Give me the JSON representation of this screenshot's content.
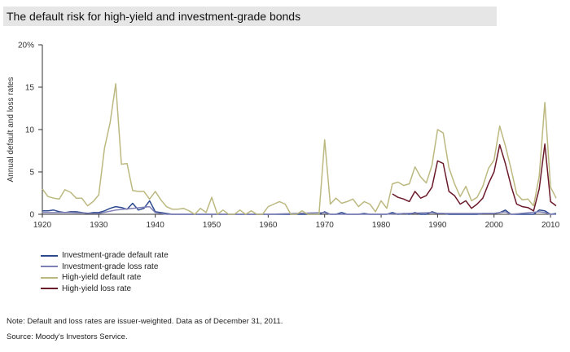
{
  "title": "The default risk for high-yield and investment-grade bonds",
  "note": "Note: Default and loss rates are issuer-weighted. Data as of December 31, 2011.",
  "source": "Source: Moody's Investors Service.",
  "chart_data": {
    "type": "line",
    "ylabel": "Annual default and loss rates",
    "xlim": [
      1920,
      2011
    ],
    "ylim": [
      0,
      20
    ],
    "yticks": [
      0,
      5,
      10,
      15,
      20
    ],
    "ytick_labels": [
      "0",
      "5",
      "10",
      "15",
      "20%"
    ],
    "xticks": [
      1920,
      1930,
      1940,
      1950,
      1960,
      1970,
      1980,
      1990,
      2000,
      2010
    ],
    "grid": false,
    "legend_position": "bottom-left",
    "series": [
      {
        "name": "Investment-grade default rate",
        "color": "#2e4a8f",
        "points": [
          [
            1920,
            0.4
          ],
          [
            1921,
            0.4
          ],
          [
            1922,
            0.5
          ],
          [
            1923,
            0.3
          ],
          [
            1924,
            0.2
          ],
          [
            1925,
            0.3
          ],
          [
            1926,
            0.3
          ],
          [
            1927,
            0.2
          ],
          [
            1928,
            0.1
          ],
          [
            1929,
            0.2
          ],
          [
            1930,
            0.2
          ],
          [
            1931,
            0.4
          ],
          [
            1932,
            0.7
          ],
          [
            1933,
            0.9
          ],
          [
            1934,
            0.8
          ],
          [
            1935,
            0.6
          ],
          [
            1936,
            1.3
          ],
          [
            1937,
            0.5
          ],
          [
            1938,
            0.7
          ],
          [
            1939,
            1.6
          ],
          [
            1940,
            0.3
          ],
          [
            1941,
            0.2
          ],
          [
            1942,
            0.1
          ],
          [
            1943,
            0.0
          ],
          [
            1944,
            0.0
          ],
          [
            1945,
            0.0
          ],
          [
            1950,
            0.0
          ],
          [
            1960,
            0.0
          ],
          [
            1969,
            0.0
          ],
          [
            1970,
            0.3
          ],
          [
            1971,
            0.0
          ],
          [
            1972,
            0.0
          ],
          [
            1973,
            0.2
          ],
          [
            1974,
            0.0
          ],
          [
            1975,
            0.0
          ],
          [
            1976,
            0.0
          ],
          [
            1977,
            0.1
          ],
          [
            1978,
            0.0
          ],
          [
            1979,
            0.0
          ],
          [
            1980,
            0.0
          ],
          [
            1981,
            0.0
          ],
          [
            1982,
            0.2
          ],
          [
            1983,
            0.0
          ],
          [
            1984,
            0.1
          ],
          [
            1985,
            0.0
          ],
          [
            1986,
            0.2
          ],
          [
            1987,
            0.0
          ],
          [
            1988,
            0.0
          ],
          [
            1989,
            0.3
          ],
          [
            1990,
            0.1
          ],
          [
            1991,
            0.1
          ],
          [
            1992,
            0.0
          ],
          [
            1993,
            0.0
          ],
          [
            1994,
            0.0
          ],
          [
            1995,
            0.0
          ],
          [
            1996,
            0.0
          ],
          [
            1997,
            0.0
          ],
          [
            1998,
            0.1
          ],
          [
            1999,
            0.1
          ],
          [
            2000,
            0.1
          ],
          [
            2001,
            0.2
          ],
          [
            2002,
            0.5
          ],
          [
            2003,
            0.0
          ],
          [
            2004,
            0.0
          ],
          [
            2005,
            0.0
          ],
          [
            2006,
            0.0
          ],
          [
            2007,
            0.0
          ],
          [
            2008,
            0.5
          ],
          [
            2009,
            0.4
          ],
          [
            2010,
            0.0
          ],
          [
            2011,
            0.1
          ]
        ]
      },
      {
        "name": "Investment-grade loss rate",
        "color": "#7e7fb5",
        "points": [
          [
            1920,
            0.2
          ],
          [
            1925,
            0.2
          ],
          [
            1930,
            0.1
          ],
          [
            1933,
            0.5
          ],
          [
            1936,
            0.7
          ],
          [
            1939,
            0.9
          ],
          [
            1940,
            0.2
          ],
          [
            1942,
            0.0
          ],
          [
            1950,
            0.0
          ],
          [
            1960,
            0.0
          ],
          [
            1970,
            0.2
          ],
          [
            1971,
            0.0
          ],
          [
            1980,
            0.0
          ],
          [
            1989,
            0.2
          ],
          [
            1990,
            0.1
          ],
          [
            2000,
            0.1
          ],
          [
            2002,
            0.3
          ],
          [
            2003,
            0.0
          ],
          [
            2008,
            0.3
          ],
          [
            2009,
            0.2
          ],
          [
            2010,
            0.0
          ],
          [
            2011,
            0.0
          ]
        ]
      },
      {
        "name": "High-yield default rate",
        "color": "#bcb980",
        "points": [
          [
            1920,
            3.0
          ],
          [
            1921,
            2.1
          ],
          [
            1922,
            1.9
          ],
          [
            1923,
            1.8
          ],
          [
            1924,
            2.9
          ],
          [
            1925,
            2.6
          ],
          [
            1926,
            1.9
          ],
          [
            1927,
            1.9
          ],
          [
            1928,
            1.0
          ],
          [
            1929,
            1.5
          ],
          [
            1930,
            2.3
          ],
          [
            1931,
            7.8
          ],
          [
            1932,
            10.8
          ],
          [
            1933,
            15.4
          ],
          [
            1934,
            5.9
          ],
          [
            1935,
            6.0
          ],
          [
            1936,
            2.8
          ],
          [
            1937,
            2.7
          ],
          [
            1938,
            2.7
          ],
          [
            1939,
            1.8
          ],
          [
            1940,
            2.7
          ],
          [
            1941,
            1.7
          ],
          [
            1942,
            0.9
          ],
          [
            1943,
            0.6
          ],
          [
            1944,
            0.6
          ],
          [
            1945,
            0.7
          ],
          [
            1946,
            0.4
          ],
          [
            1947,
            0.0
          ],
          [
            1948,
            0.7
          ],
          [
            1949,
            0.2
          ],
          [
            1950,
            2.0
          ],
          [
            1951,
            0.0
          ],
          [
            1952,
            0.5
          ],
          [
            1953,
            0.0
          ],
          [
            1954,
            0.0
          ],
          [
            1955,
            0.5
          ],
          [
            1956,
            0.0
          ],
          [
            1957,
            0.4
          ],
          [
            1958,
            0.0
          ],
          [
            1959,
            0.0
          ],
          [
            1960,
            0.9
          ],
          [
            1961,
            1.2
          ],
          [
            1962,
            1.5
          ],
          [
            1963,
            1.2
          ],
          [
            1964,
            0.0
          ],
          [
            1965,
            0.0
          ],
          [
            1966,
            0.4
          ],
          [
            1967,
            0.0
          ],
          [
            1968,
            0.0
          ],
          [
            1969,
            0.0
          ],
          [
            1970,
            8.8
          ],
          [
            1971,
            1.2
          ],
          [
            1972,
            1.9
          ],
          [
            1973,
            1.3
          ],
          [
            1974,
            1.5
          ],
          [
            1975,
            1.8
          ],
          [
            1976,
            0.9
          ],
          [
            1977,
            1.5
          ],
          [
            1978,
            1.2
          ],
          [
            1979,
            0.3
          ],
          [
            1980,
            1.6
          ],
          [
            1981,
            0.7
          ],
          [
            1982,
            3.6
          ],
          [
            1983,
            3.8
          ],
          [
            1984,
            3.4
          ],
          [
            1985,
            3.6
          ],
          [
            1986,
            5.6
          ],
          [
            1987,
            4.4
          ],
          [
            1988,
            3.7
          ],
          [
            1989,
            5.8
          ],
          [
            1990,
            10.0
          ],
          [
            1991,
            9.6
          ],
          [
            1992,
            5.5
          ],
          [
            1993,
            3.6
          ],
          [
            1994,
            2.1
          ],
          [
            1995,
            3.3
          ],
          [
            1996,
            1.6
          ],
          [
            1997,
            2.0
          ],
          [
            1998,
            3.3
          ],
          [
            1999,
            5.4
          ],
          [
            2000,
            6.4
          ],
          [
            2001,
            10.4
          ],
          [
            2002,
            8.1
          ],
          [
            2003,
            5.4
          ],
          [
            2004,
            2.4
          ],
          [
            2005,
            1.7
          ],
          [
            2006,
            1.8
          ],
          [
            2007,
            1.0
          ],
          [
            2008,
            4.5
          ],
          [
            2009,
            13.2
          ],
          [
            2010,
            3.2
          ],
          [
            2011,
            1.9
          ]
        ]
      },
      {
        "name": "High-yield loss rate",
        "color": "#6b1a2a",
        "points": [
          [
            1982,
            2.4
          ],
          [
            1983,
            2.0
          ],
          [
            1984,
            1.8
          ],
          [
            1985,
            1.5
          ],
          [
            1986,
            2.7
          ],
          [
            1987,
            1.9
          ],
          [
            1988,
            2.2
          ],
          [
            1989,
            3.2
          ],
          [
            1990,
            6.3
          ],
          [
            1991,
            6.0
          ],
          [
            1992,
            2.7
          ],
          [
            1993,
            2.2
          ],
          [
            1994,
            1.2
          ],
          [
            1995,
            1.6
          ],
          [
            1996,
            0.7
          ],
          [
            1997,
            1.2
          ],
          [
            1998,
            1.9
          ],
          [
            1999,
            3.6
          ],
          [
            2000,
            5.0
          ],
          [
            2001,
            8.2
          ],
          [
            2002,
            6.0
          ],
          [
            2003,
            3.4
          ],
          [
            2004,
            1.2
          ],
          [
            2005,
            0.9
          ],
          [
            2006,
            0.8
          ],
          [
            2007,
            0.4
          ],
          [
            2008,
            3.0
          ],
          [
            2009,
            8.3
          ],
          [
            2010,
            1.5
          ],
          [
            2011,
            1.0
          ]
        ]
      }
    ]
  }
}
